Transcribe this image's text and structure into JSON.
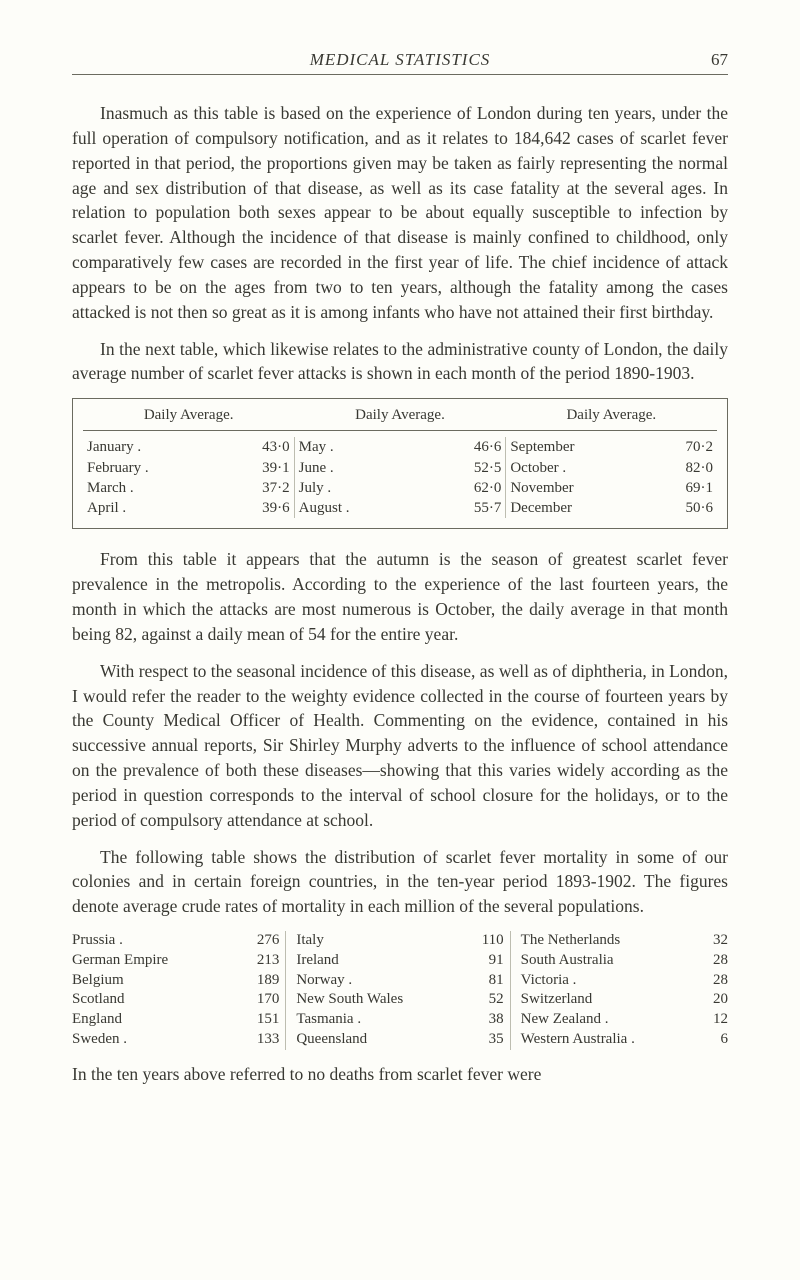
{
  "header": {
    "running_title": "MEDICAL STATISTICS",
    "page_number": "67"
  },
  "paragraphs": {
    "p1": "Inasmuch as this table is based on the experience of London during ten years, under the full operation of compulsory notification, and as it relates to 184,642 cases of scarlet fever reported in that period, the proportions given may be taken as fairly representing the normal age and sex distribution of that disease, as well as its case fatality at the several ages. In relation to population both sexes appear to be about equally susceptible to infection by scarlet fever. Although the incidence of that disease is mainly confined to childhood, only comparatively few cases are recorded in the first year of life. The chief incidence of attack appears to be on the ages from two to ten years, although the fatality among the cases attacked is not then so great as it is among infants who have not attained their first birthday.",
    "p2": "In the next table, which likewise relates to the administrative county of London, the daily average number of scarlet fever attacks is shown in each month of the period 1890-1903.",
    "p3": "From this table it appears that the autumn is the season of greatest scarlet fever prevalence in the metropolis. According to the experience of the last fourteen years, the month in which the attacks are most numerous is October, the daily average in that month being 82, against a daily mean of 54 for the entire year.",
    "p4": "With respect to the seasonal incidence of this disease, as well as of diphtheria, in London, I would refer the reader to the weighty evidence collected in the course of fourteen years by the County Medical Officer of Health. Commenting on the evidence, contained in his successive annual reports, Sir Shirley Murphy adverts to the influence of school attendance on the prevalence of both these diseases—showing that this varies widely according as the period in question corresponds to the interval of school closure for the holidays, or to the period of compulsory attendance at school.",
    "p5": "The following table shows the distribution of scarlet fever mortality in some of our colonies and in certain foreign countries, in the ten-year period 1893-1902. The figures denote average crude rates of mortality in each million of the several populations.",
    "p6": "In the ten years above referred to no deaths from scarlet fever were"
  },
  "avg_table": {
    "header_label": "Daily Average.",
    "columns": [
      [
        {
          "month": "January  .",
          "value": "43·0"
        },
        {
          "month": "February .",
          "value": "39·1"
        },
        {
          "month": "March  .",
          "value": "37·2"
        },
        {
          "month": "April  .",
          "value": "39·6"
        }
      ],
      [
        {
          "month": "May  .",
          "value": "46·6"
        },
        {
          "month": "June  .",
          "value": "52·5"
        },
        {
          "month": "July  .",
          "value": "62·0"
        },
        {
          "month": "August  .",
          "value": "55·7"
        }
      ],
      [
        {
          "month": "September",
          "value": "70·2"
        },
        {
          "month": "October  .",
          "value": "82·0"
        },
        {
          "month": "November",
          "value": "69·1"
        },
        {
          "month": "December",
          "value": "50·6"
        }
      ]
    ],
    "border_color": "#6b6b60",
    "divider_color": "#bdbdb0",
    "font_size": 15
  },
  "country_table": {
    "columns": [
      [
        {
          "country": "Prussia .",
          "value": "276"
        },
        {
          "country": "German Empire",
          "value": "213"
        },
        {
          "country": "Belgium",
          "value": "189"
        },
        {
          "country": "Scotland",
          "value": "170"
        },
        {
          "country": "England",
          "value": "151"
        },
        {
          "country": "Sweden .",
          "value": "133"
        }
      ],
      [
        {
          "country": "Italy",
          "value": "110"
        },
        {
          "country": "Ireland",
          "value": "91"
        },
        {
          "country": "Norway .",
          "value": "81"
        },
        {
          "country": "New South Wales",
          "value": "52"
        },
        {
          "country": "Tasmania .",
          "value": "38"
        },
        {
          "country": "Queensland",
          "value": "35"
        }
      ],
      [
        {
          "country": "The Netherlands",
          "value": "32"
        },
        {
          "country": "South Australia",
          "value": "28"
        },
        {
          "country": "Victoria .",
          "value": "28"
        },
        {
          "country": "Switzerland",
          "value": "20"
        },
        {
          "country": "New Zealand .",
          "value": "12"
        },
        {
          "country": "Western Australia .",
          "value": "6"
        }
      ]
    ],
    "divider_color": "#bdbdb0",
    "font_size": 15
  },
  "style": {
    "page_bg": "#fdfdf9",
    "text_color": "#383832",
    "rule_color": "#6b6b60",
    "body_font_size": 17.5,
    "line_height": 1.42
  }
}
